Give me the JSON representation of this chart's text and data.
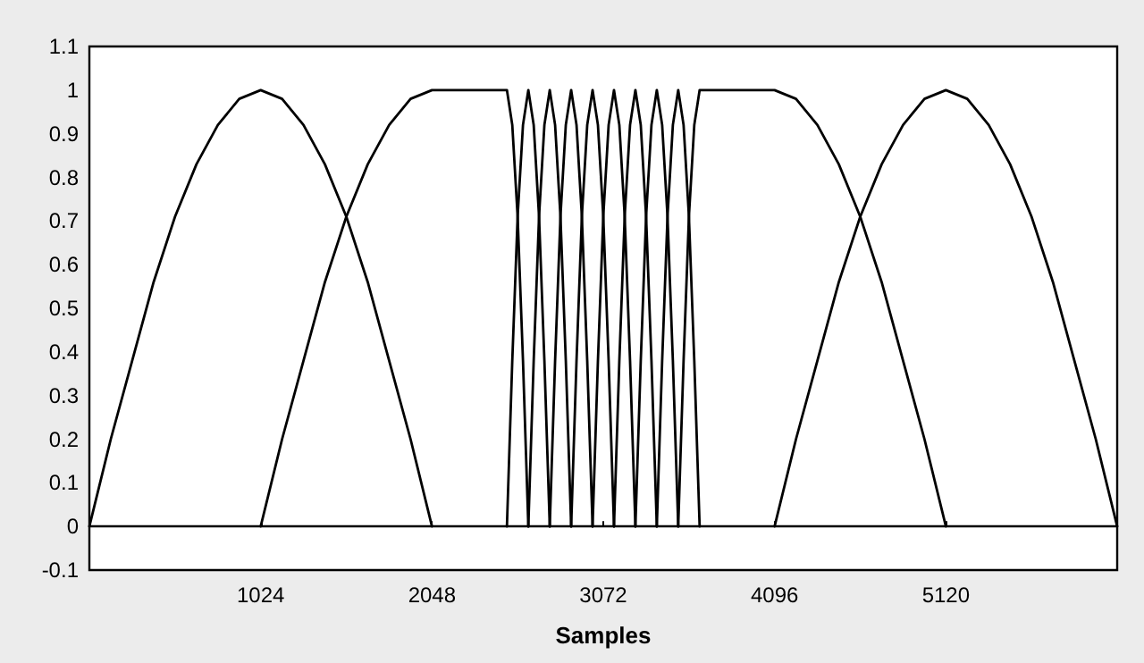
{
  "chart_data": {
    "type": "line",
    "xlabel": "Samples",
    "xlim": [
      0,
      6144
    ],
    "xticks": [
      1024,
      2048,
      3072,
      4096,
      5120
    ],
    "ylim": [
      -0.1,
      1.1
    ],
    "yticks": [
      -0.1,
      0,
      0.1,
      0.2,
      0.3,
      0.4,
      0.5,
      0.6,
      0.7,
      0.8,
      0.9,
      1,
      1.1
    ],
    "series": [
      {
        "color": "#000000",
        "x": [
          0,
          128,
          256,
          384,
          512,
          640,
          768,
          896,
          1024,
          1152,
          1280,
          1408,
          1536,
          1664,
          1792,
          1920,
          2048
        ],
        "values": [
          0,
          0.2,
          0.38,
          0.56,
          0.71,
          0.83,
          0.92,
          0.98,
          1,
          0.98,
          0.92,
          0.83,
          0.71,
          0.56,
          0.38,
          0.2,
          0
        ]
      },
      {
        "color": "#000000",
        "x": [
          1024,
          1152,
          1280,
          1408,
          1536,
          1664,
          1792,
          1920,
          2048,
          2496,
          2528,
          2560,
          2592,
          2624
        ],
        "values": [
          0,
          0.2,
          0.38,
          0.56,
          0.71,
          0.83,
          0.92,
          0.98,
          1,
          1,
          0.92,
          0.71,
          0.38,
          0
        ]
      },
      {
        "color": "#000000",
        "x": [
          2496,
          2528,
          2560,
          2592,
          2624,
          2656,
          2688,
          2720,
          2752
        ],
        "values": [
          0,
          0.38,
          0.71,
          0.92,
          1,
          0.92,
          0.71,
          0.38,
          0
        ]
      },
      {
        "color": "#000000",
        "x": [
          2624,
          2656,
          2688,
          2720,
          2752,
          2784,
          2816,
          2848,
          2880
        ],
        "values": [
          0,
          0.38,
          0.71,
          0.92,
          1,
          0.92,
          0.71,
          0.38,
          0
        ]
      },
      {
        "color": "#000000",
        "x": [
          2752,
          2784,
          2816,
          2848,
          2880,
          2912,
          2944,
          2976,
          3008
        ],
        "values": [
          0,
          0.38,
          0.71,
          0.92,
          1,
          0.92,
          0.71,
          0.38,
          0
        ]
      },
      {
        "color": "#000000",
        "x": [
          2880,
          2912,
          2944,
          2976,
          3008,
          3040,
          3072,
          3104,
          3136
        ],
        "values": [
          0,
          0.38,
          0.71,
          0.92,
          1,
          0.92,
          0.71,
          0.38,
          0
        ]
      },
      {
        "color": "#000000",
        "x": [
          3008,
          3040,
          3072,
          3104,
          3136,
          3168,
          3200,
          3232,
          3264
        ],
        "values": [
          0,
          0.38,
          0.71,
          0.92,
          1,
          0.92,
          0.71,
          0.38,
          0
        ]
      },
      {
        "color": "#000000",
        "x": [
          3136,
          3168,
          3200,
          3232,
          3264,
          3296,
          3328,
          3360,
          3392
        ],
        "values": [
          0,
          0.38,
          0.71,
          0.92,
          1,
          0.92,
          0.71,
          0.38,
          0
        ]
      },
      {
        "color": "#000000",
        "x": [
          3264,
          3296,
          3328,
          3360,
          3392,
          3424,
          3456,
          3488,
          3520
        ],
        "values": [
          0,
          0.38,
          0.71,
          0.92,
          1,
          0.92,
          0.71,
          0.38,
          0
        ]
      },
      {
        "color": "#000000",
        "x": [
          3392,
          3424,
          3456,
          3488,
          3520,
          3552,
          3584,
          3616,
          3648
        ],
        "values": [
          0,
          0.38,
          0.71,
          0.92,
          1,
          0.92,
          0.71,
          0.38,
          0
        ]
      },
      {
        "color": "#000000",
        "x": [
          3520,
          3552,
          3584,
          3616,
          3648,
          4096,
          4224,
          4352,
          4480,
          4608,
          4736,
          4864,
          4992,
          5120
        ],
        "values": [
          0,
          0.38,
          0.71,
          0.92,
          1,
          1,
          0.98,
          0.92,
          0.83,
          0.71,
          0.56,
          0.38,
          0.2,
          0
        ]
      },
      {
        "color": "#000000",
        "x": [
          4096,
          4224,
          4352,
          4480,
          4608,
          4736,
          4864,
          4992,
          5120,
          5248,
          5376,
          5504,
          5632,
          5760,
          5888,
          6016,
          6144
        ],
        "values": [
          0,
          0.2,
          0.38,
          0.56,
          0.71,
          0.83,
          0.92,
          0.98,
          1,
          0.98,
          0.92,
          0.83,
          0.71,
          0.56,
          0.38,
          0.2,
          0
        ]
      }
    ]
  }
}
